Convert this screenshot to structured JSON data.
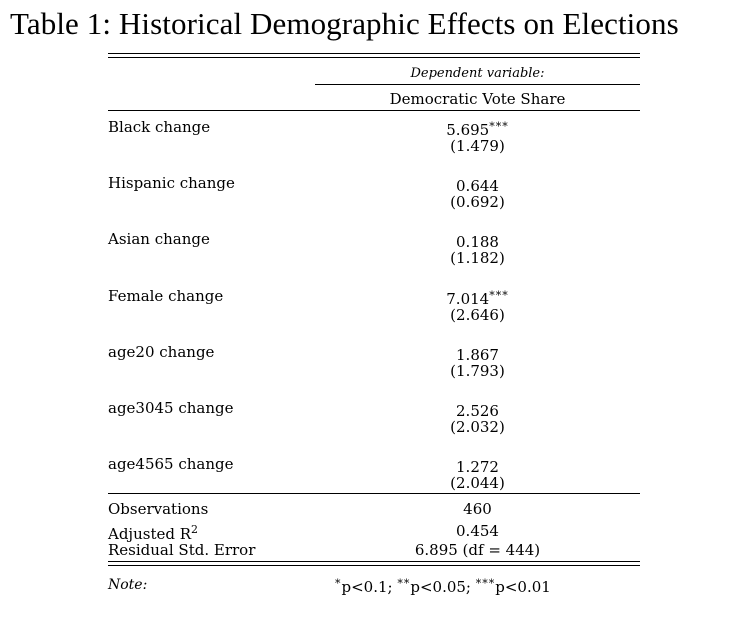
{
  "title": "Table 1: Historical Demographic Effects on Elections",
  "header": {
    "dependent_variable": "Dependent variable:",
    "column": "Democratic Vote Share"
  },
  "rows": [
    {
      "label": "Black change",
      "coef": "5.695",
      "stars": "***",
      "se": "(1.479)"
    },
    {
      "label": "Hispanic change",
      "coef": "0.644",
      "stars": "",
      "se": "(0.692)"
    },
    {
      "label": "Asian change",
      "coef": "0.188",
      "stars": "",
      "se": "(1.182)"
    },
    {
      "label": "Female change",
      "coef": "7.014",
      "stars": "***",
      "se": "(2.646)"
    },
    {
      "label": "age20 change",
      "coef": "1.867",
      "stars": "",
      "se": "(1.793)"
    },
    {
      "label": "age3045 change",
      "coef": "2.526",
      "stars": "",
      "se": "(2.032)"
    },
    {
      "label": "age4565 change",
      "coef": "1.272",
      "stars": "",
      "se": "(2.044)"
    }
  ],
  "stats": {
    "observations_label": "Observations",
    "observations_value": "460",
    "adjr2_label": "Adjusted R",
    "adjr2_sup": "2",
    "adjr2_value": "0.454",
    "rse_label": "Residual Std. Error",
    "rse_value": "6.895 (df = 444)"
  },
  "note": {
    "label": "Note:",
    "s1": "*",
    "t1": "p<0.1; ",
    "s2": "**",
    "t2": "p<0.05; ",
    "s3": "***",
    "t3": "p<0.01"
  }
}
